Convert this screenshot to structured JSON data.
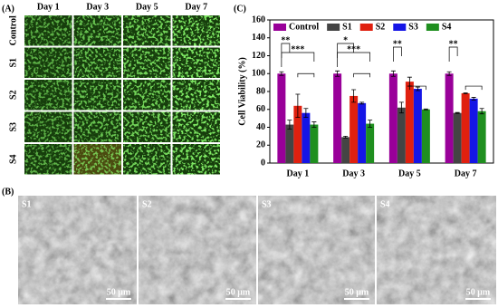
{
  "panel_labels": [
    "(A)",
    "(B)",
    "(C)"
  ],
  "fluorescence": {
    "columns": [
      "Day 1",
      "Day 3",
      "Day 5",
      "Day 7"
    ],
    "rows": [
      "Control",
      "S1",
      "S2",
      "S3",
      "S4"
    ]
  },
  "sem": {
    "labels": [
      "S1",
      "S2",
      "S3",
      "S4"
    ],
    "scale_bar": "50 μm"
  },
  "chart_data": {
    "type": "bar",
    "y_label": "Cell Viability (%)",
    "categories": [
      "Day 1",
      "Day 3",
      "Day 5",
      "Day 7"
    ],
    "series": [
      {
        "name": "Control",
        "color": "#990099",
        "values": [
          100,
          100,
          100,
          100
        ],
        "errors": [
          2,
          3,
          3,
          2
        ]
      },
      {
        "name": "S1",
        "color": "#444444",
        "values": [
          43,
          29,
          62,
          56
        ],
        "errors": [
          5,
          1,
          6,
          0.5
        ]
      },
      {
        "name": "S2",
        "color": "#e0200f",
        "values": [
          64,
          75,
          91,
          78
        ],
        "errors": [
          13,
          7,
          5,
          0.5
        ]
      },
      {
        "name": "S3",
        "color": "#1515e6",
        "values": [
          56,
          67,
          83,
          72
        ],
        "errors": [
          5,
          1,
          2,
          1.5
        ]
      },
      {
        "name": "S4",
        "color": "#1f8f1f",
        "values": [
          43,
          44,
          60,
          58
        ],
        "errors": [
          3,
          4,
          0.5,
          3
        ]
      }
    ],
    "annotations": [
      "**",
      "***",
      "*",
      "***",
      "**",
      "**"
    ],
    "ylim": [
      0,
      160
    ],
    "yticks": [
      0,
      20,
      40,
      60,
      80,
      100,
      120,
      140,
      160
    ],
    "legend": "top"
  }
}
